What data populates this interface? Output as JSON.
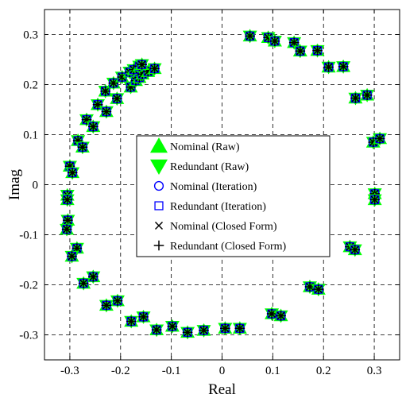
{
  "chart_data": {
    "type": "scatter",
    "xlabel": "Real",
    "ylabel": "Imag",
    "xlim": [
      -0.35,
      0.35
    ],
    "ylim": [
      -0.35,
      0.35
    ],
    "xticks": [
      -0.3,
      -0.2,
      -0.1,
      0,
      0.1,
      0.2,
      0.3
    ],
    "xtick_labels": [
      "-0.3",
      "-0.2",
      "-0.1",
      "0",
      "0.1",
      "0.2",
      "0.3"
    ],
    "yticks": [
      -0.3,
      -0.2,
      -0.1,
      0,
      0.1,
      0.2,
      0.3
    ],
    "ytick_labels": [
      "-0.3",
      "-0.2",
      "-0.1",
      "0",
      "0.1",
      "0.2",
      "0.3"
    ],
    "grid": true,
    "legend_position": "center",
    "points": [
      [
        0.055,
        0.297
      ],
      [
        0.091,
        0.294
      ],
      [
        0.104,
        0.287
      ],
      [
        0.142,
        0.284
      ],
      [
        0.154,
        0.267
      ],
      [
        0.188,
        0.268
      ],
      [
        0.21,
        0.235
      ],
      [
        0.239,
        0.236
      ],
      [
        0.263,
        0.173
      ],
      [
        0.286,
        0.179
      ],
      [
        0.298,
        0.085
      ],
      [
        0.311,
        0.092
      ],
      [
        0.301,
        -0.018
      ],
      [
        0.301,
        -0.03
      ],
      [
        0.252,
        -0.124
      ],
      [
        0.262,
        -0.13
      ],
      [
        0.173,
        -0.204
      ],
      [
        0.19,
        -0.209
      ],
      [
        0.098,
        -0.258
      ],
      [
        0.116,
        -0.262
      ],
      [
        0.006,
        -0.287
      ],
      [
        0.035,
        -0.287
      ],
      [
        -0.036,
        -0.291
      ],
      [
        -0.068,
        -0.295
      ],
      [
        -0.098,
        -0.283
      ],
      [
        -0.129,
        -0.29
      ],
      [
        -0.155,
        -0.264
      ],
      [
        -0.179,
        -0.273
      ],
      [
        -0.206,
        -0.232
      ],
      [
        -0.228,
        -0.241
      ],
      [
        -0.254,
        -0.184
      ],
      [
        -0.273,
        -0.197
      ],
      [
        -0.286,
        -0.127
      ],
      [
        -0.296,
        -0.143
      ],
      [
        -0.304,
        -0.071
      ],
      [
        -0.306,
        -0.089
      ],
      [
        -0.305,
        -0.021
      ],
      [
        -0.305,
        -0.03
      ],
      [
        -0.3,
        0.037
      ],
      [
        -0.295,
        0.024
      ],
      [
        -0.284,
        0.088
      ],
      [
        -0.275,
        0.075
      ],
      [
        -0.267,
        0.13
      ],
      [
        -0.254,
        0.116
      ],
      [
        -0.245,
        0.16
      ],
      [
        -0.228,
        0.146
      ],
      [
        -0.23,
        0.187
      ],
      [
        -0.207,
        0.172
      ],
      [
        -0.214,
        0.203
      ],
      [
        -0.18,
        0.195
      ],
      [
        -0.197,
        0.215
      ],
      [
        -0.17,
        0.208
      ],
      [
        -0.182,
        0.225
      ],
      [
        -0.163,
        0.214
      ],
      [
        -0.174,
        0.23
      ],
      [
        -0.157,
        0.221
      ],
      [
        -0.163,
        0.237
      ],
      [
        -0.146,
        0.226
      ],
      [
        -0.158,
        0.24
      ],
      [
        -0.133,
        0.232
      ]
    ],
    "legend": [
      {
        "label": "Nominal (Raw)",
        "marker": "triangle-up",
        "color": "#00ff00"
      },
      {
        "label": "Redundant (Raw)",
        "marker": "triangle-down",
        "color": "#00ff00"
      },
      {
        "label": "Nominal (Iteration)",
        "marker": "circle",
        "color": "#0000ff"
      },
      {
        "label": "Redundant (Iteration)",
        "marker": "square",
        "color": "#0000ff"
      },
      {
        "label": "Nominal (Closed Form)",
        "marker": "x",
        "color": "#000000"
      },
      {
        "label": "Redundant (Closed Form)",
        "marker": "plus",
        "color": "#000000"
      }
    ]
  }
}
